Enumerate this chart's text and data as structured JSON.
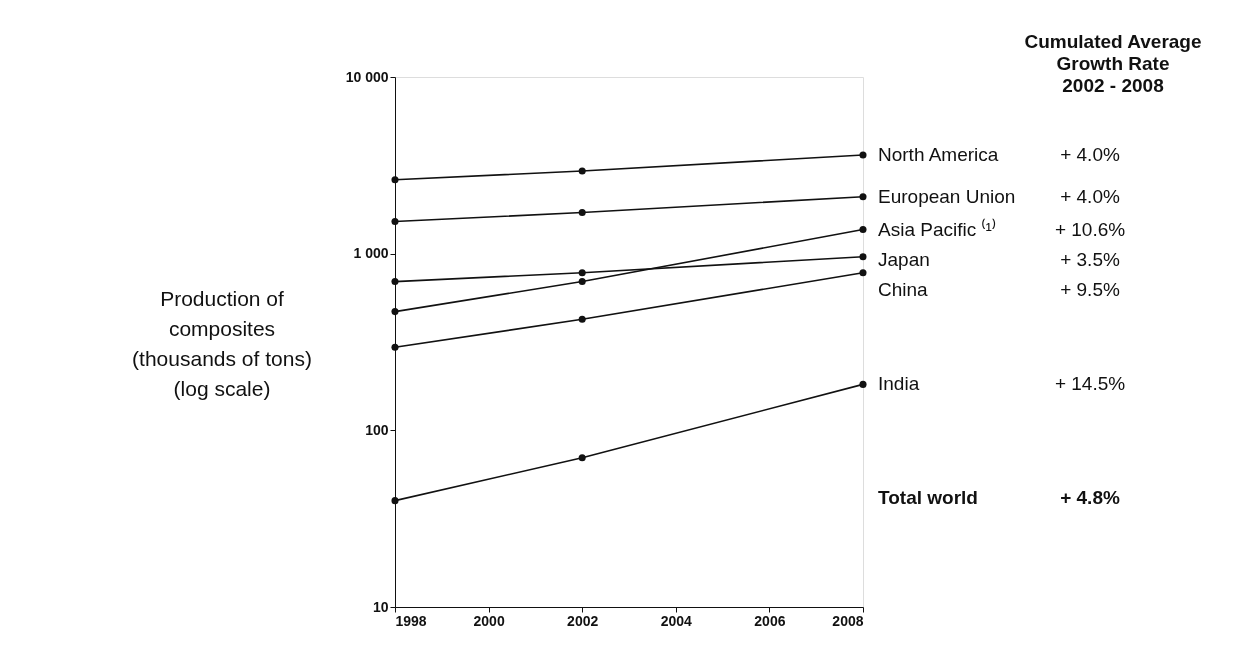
{
  "chart_data": {
    "type": "line",
    "ylabel": "Production of\ncomposites\n(thousands of tons)\n(log scale)",
    "x": [
      1998,
      2002,
      2008
    ],
    "series": [
      {
        "name": "North America",
        "color": "#111111",
        "values": [
          2620,
          2940,
          3620
        ]
      },
      {
        "name": "European Union",
        "color": "#111111",
        "values": [
          1520,
          1710,
          2100
        ]
      },
      {
        "name": "Asia Pacific ⁽¹⁾",
        "color": "#111111",
        "values": [
          470,
          695,
          1370
        ]
      },
      {
        "name": "Japan",
        "color": "#111111",
        "values": [
          695,
          780,
          960
        ]
      },
      {
        "name": "China",
        "color": "#111111",
        "values": [
          295,
          425,
          780
        ]
      },
      {
        "name": "India",
        "color": "#111111",
        "values": [
          40,
          70,
          182
        ]
      }
    ],
    "annotations": [
      "Cumulated Average\nGrowth Rate\n2002 - 2008",
      "+ 4.0%",
      "+ 4.0%",
      "+ 10.6%",
      "+ 3.5%",
      "+ 9.5%",
      "+ 14.5%",
      "Total world",
      "+ 4.8%"
    ],
    "log": true,
    "marker": "circle",
    "line_style": "solid",
    "grid": false,
    "xlim": [
      1998,
      2008
    ],
    "xticks": [
      1998,
      2000,
      2002,
      2004,
      2006,
      2008
    ],
    "ylim": [
      10,
      10000
    ],
    "yticks": [
      {
        "value": 10,
        "label": "10"
      },
      {
        "value": 100,
        "label": "100"
      },
      {
        "value": 1000,
        "label": "1 000"
      },
      {
        "value": 10000,
        "label": "10 000"
      }
    ]
  }
}
